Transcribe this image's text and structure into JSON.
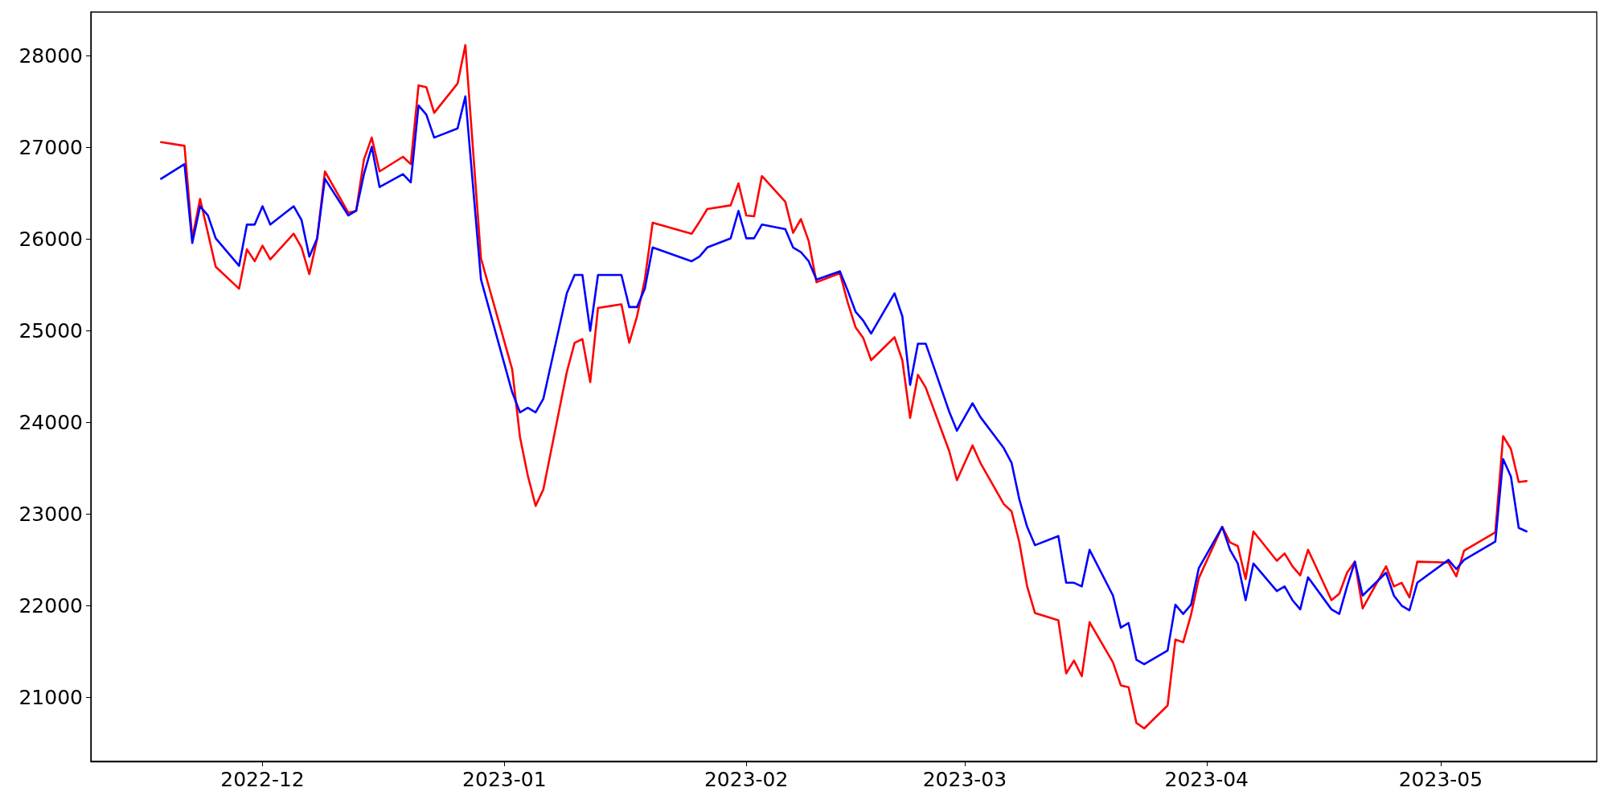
{
  "chart_data": {
    "type": "line",
    "xlim": [
      "2022-11-09",
      "2023-05-21"
    ],
    "ylim": [
      20300,
      28480
    ],
    "xticks": [
      {
        "value": "2022-12-01",
        "label": "2022-12"
      },
      {
        "value": "2023-01-01",
        "label": "2023-01"
      },
      {
        "value": "2023-02-01",
        "label": "2023-02"
      },
      {
        "value": "2023-03-01",
        "label": "2023-03"
      },
      {
        "value": "2023-04-01",
        "label": "2023-04"
      },
      {
        "value": "2023-05-01",
        "label": "2023-05"
      }
    ],
    "yticks": [
      21000,
      22000,
      23000,
      24000,
      25000,
      26000,
      27000,
      28000
    ],
    "grid": false,
    "marker": "none",
    "line_style": "solid",
    "series": [
      {
        "color": "#ff0000",
        "x": [
          "2022-11-18",
          "2022-11-21",
          "2022-11-22",
          "2022-11-23",
          "2022-11-25",
          "2022-11-28",
          "2022-11-29",
          "2022-11-30",
          "2022-12-01",
          "2022-12-02",
          "2022-12-05",
          "2022-12-06",
          "2022-12-07",
          "2022-12-08",
          "2022-12-09",
          "2022-12-12",
          "2022-12-13",
          "2022-12-14",
          "2022-12-15",
          "2022-12-16",
          "2022-12-19",
          "2022-12-20",
          "2022-12-21",
          "2022-12-22",
          "2022-12-23",
          "2022-12-26",
          "2022-12-27",
          "2022-12-29",
          "2023-01-02",
          "2023-01-03",
          "2023-01-04",
          "2023-01-05",
          "2023-01-06",
          "2023-01-09",
          "2023-01-10",
          "2023-01-11",
          "2023-01-12",
          "2023-01-13",
          "2023-01-16",
          "2023-01-17",
          "2023-01-18",
          "2023-01-19",
          "2023-01-20",
          "2023-01-25",
          "2023-01-26",
          "2023-01-27",
          "2023-01-30",
          "2023-01-31",
          "2023-02-01",
          "2023-02-02",
          "2023-02-03",
          "2023-02-06",
          "2023-02-07",
          "2023-02-08",
          "2023-02-09",
          "2023-02-10",
          "2023-02-13",
          "2023-02-14",
          "2023-02-15",
          "2023-02-16",
          "2023-02-17",
          "2023-02-20",
          "2023-02-21",
          "2023-02-22",
          "2023-02-23",
          "2023-02-24",
          "2023-02-27",
          "2023-02-28",
          "2023-03-02",
          "2023-03-03",
          "2023-03-06",
          "2023-03-07",
          "2023-03-08",
          "2023-03-09",
          "2023-03-10",
          "2023-03-13",
          "2023-03-14",
          "2023-03-15",
          "2023-03-16",
          "2023-03-17",
          "2023-03-20",
          "2023-03-21",
          "2023-03-22",
          "2023-03-23",
          "2023-03-24",
          "2023-03-27",
          "2023-03-28",
          "2023-03-29",
          "2023-03-30",
          "2023-03-31",
          "2023-04-03",
          "2023-04-04",
          "2023-04-05",
          "2023-04-06",
          "2023-04-07",
          "2023-04-10",
          "2023-04-11",
          "2023-04-12",
          "2023-04-13",
          "2023-04-14",
          "2023-04-17",
          "2023-04-18",
          "2023-04-19",
          "2023-04-20",
          "2023-04-21",
          "2023-04-24",
          "2023-04-25",
          "2023-04-26",
          "2023-04-27",
          "2023-04-28",
          "2023-05-02",
          "2023-05-03",
          "2023-05-04",
          "2023-05-08",
          "2023-05-09",
          "2023-05-10",
          "2023-05-11",
          "2023-05-12"
        ],
        "values": [
          27060,
          27020,
          26010,
          26440,
          25700,
          25460,
          25890,
          25760,
          25930,
          25780,
          26060,
          25910,
          25620,
          26000,
          26740,
          26290,
          26310,
          26870,
          27110,
          26740,
          26900,
          26820,
          27680,
          27660,
          27380,
          27700,
          28120,
          25790,
          24580,
          23840,
          23420,
          23090,
          23270,
          24550,
          24870,
          24910,
          24440,
          25250,
          25290,
          24870,
          25160,
          25560,
          26180,
          26060,
          26190,
          26330,
          26370,
          26610,
          26260,
          26250,
          26690,
          26410,
          26070,
          26220,
          25980,
          25530,
          25630,
          25310,
          25040,
          24920,
          24680,
          24930,
          24680,
          24050,
          24520,
          24380,
          23690,
          23370,
          23750,
          23560,
          23110,
          23030,
          22690,
          22210,
          21920,
          21840,
          21260,
          21400,
          21230,
          21820,
          21380,
          21130,
          21110,
          20720,
          20660,
          20910,
          21630,
          21600,
          21900,
          22300,
          22860,
          22690,
          22650,
          22290,
          22810,
          22490,
          22570,
          22430,
          22330,
          22610,
          22060,
          22130,
          22360,
          22480,
          21970,
          22430,
          22210,
          22250,
          22090,
          22480,
          22470,
          22320,
          22600,
          22800,
          23850,
          23710,
          23350,
          23360
        ]
      },
      {
        "color": "#0000ff",
        "x": [
          "2022-11-18",
          "2022-11-21",
          "2022-11-22",
          "2022-11-23",
          "2022-11-24",
          "2022-11-25",
          "2022-11-28",
          "2022-11-29",
          "2022-11-30",
          "2022-12-01",
          "2022-12-02",
          "2022-12-05",
          "2022-12-06",
          "2022-12-07",
          "2022-12-08",
          "2022-12-09",
          "2022-12-12",
          "2022-12-13",
          "2022-12-14",
          "2022-12-15",
          "2022-12-16",
          "2022-12-19",
          "2022-12-20",
          "2022-12-21",
          "2022-12-22",
          "2022-12-23",
          "2022-12-26",
          "2022-12-27",
          "2022-12-29",
          "2023-01-02",
          "2023-01-03",
          "2023-01-04",
          "2023-01-05",
          "2023-01-06",
          "2023-01-09",
          "2023-01-10",
          "2023-01-11",
          "2023-01-12",
          "2023-01-13",
          "2023-01-16",
          "2023-01-17",
          "2023-01-18",
          "2023-01-19",
          "2023-01-20",
          "2023-01-25",
          "2023-01-26",
          "2023-01-27",
          "2023-01-30",
          "2023-01-31",
          "2023-02-01",
          "2023-02-02",
          "2023-02-03",
          "2023-02-06",
          "2023-02-07",
          "2023-02-08",
          "2023-02-09",
          "2023-02-10",
          "2023-02-13",
          "2023-02-14",
          "2023-02-15",
          "2023-02-16",
          "2023-02-17",
          "2023-02-20",
          "2023-02-21",
          "2023-02-22",
          "2023-02-23",
          "2023-02-24",
          "2023-02-27",
          "2023-02-28",
          "2023-03-02",
          "2023-03-03",
          "2023-03-06",
          "2023-03-07",
          "2023-03-08",
          "2023-03-09",
          "2023-03-10",
          "2023-03-13",
          "2023-03-14",
          "2023-03-15",
          "2023-03-16",
          "2023-03-17",
          "2023-03-20",
          "2023-03-21",
          "2023-03-22",
          "2023-03-23",
          "2023-03-24",
          "2023-03-27",
          "2023-03-28",
          "2023-03-29",
          "2023-03-30",
          "2023-03-31",
          "2023-04-03",
          "2023-04-04",
          "2023-04-05",
          "2023-04-06",
          "2023-04-07",
          "2023-04-10",
          "2023-04-11",
          "2023-04-12",
          "2023-04-13",
          "2023-04-14",
          "2023-04-17",
          "2023-04-18",
          "2023-04-19",
          "2023-04-20",
          "2023-04-21",
          "2023-04-24",
          "2023-04-25",
          "2023-04-26",
          "2023-04-27",
          "2023-04-28",
          "2023-05-02",
          "2023-05-03",
          "2023-05-04",
          "2023-05-08",
          "2023-05-09",
          "2023-05-10",
          "2023-05-11",
          "2023-05-12"
        ],
        "values": [
          26660,
          26820,
          25960,
          26360,
          26260,
          26010,
          25710,
          26160,
          26160,
          26360,
          26160,
          26360,
          26210,
          25810,
          26010,
          26660,
          26260,
          26310,
          26710,
          27010,
          26570,
          26710,
          26620,
          27460,
          27360,
          27110,
          27210,
          27560,
          25560,
          24330,
          24110,
          24160,
          24110,
          24260,
          25410,
          25610,
          25610,
          25000,
          25610,
          25610,
          25260,
          25260,
          25460,
          25910,
          25760,
          25810,
          25910,
          26010,
          26310,
          26010,
          26010,
          26160,
          26110,
          25910,
          25860,
          25760,
          25560,
          25650,
          25440,
          25210,
          25110,
          24970,
          25410,
          25160,
          24410,
          24860,
          24860,
          24120,
          23910,
          24210,
          24060,
          23720,
          23560,
          23160,
          22860,
          22660,
          22760,
          22250,
          22250,
          22210,
          22610,
          22110,
          21760,
          21810,
          21410,
          21360,
          21510,
          22010,
          21910,
          22010,
          22410,
          22860,
          22610,
          22460,
          22060,
          22460,
          22160,
          22210,
          22060,
          21960,
          22310,
          21960,
          21910,
          22210,
          22480,
          22110,
          22360,
          22110,
          22000,
          21950,
          22250,
          22500,
          22400,
          22500,
          22700,
          23600,
          23410,
          22850,
          22810
        ]
      }
    ]
  }
}
